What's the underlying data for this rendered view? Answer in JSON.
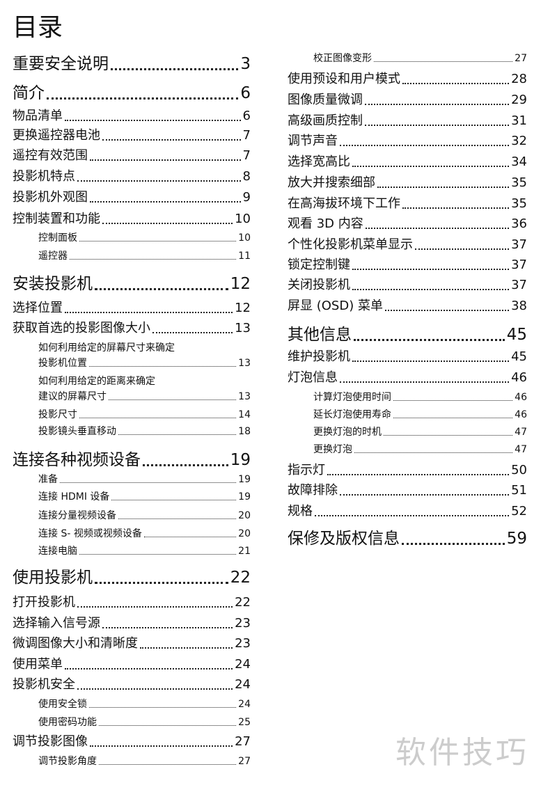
{
  "title": "目录",
  "columns": [
    [
      {
        "text": "重要安全说明",
        "page": "3"
      },
      {
        "text": "简介",
        "page": "6"
      },
      {
        "text": "物品清单",
        "page": "6"
      },
      {
        "text": "更换遥控器电池",
        "page": "7"
      },
      {
        "text": "遥控有效范围",
        "page": "7"
      },
      {
        "text": "投影机特点",
        "page": "8"
      },
      {
        "text": "投影机外观图",
        "page": "9"
      },
      {
        "text": "控制装置和功能",
        "page": "10"
      },
      {
        "text": "控制面板",
        "page": "10"
      },
      {
        "text": "遥控器",
        "page": "11"
      },
      {
        "text": "安装投影机",
        "page": "12"
      },
      {
        "text": "选择位置",
        "page": "12"
      },
      {
        "text": "获取首选的投影图像大小",
        "page": "13"
      },
      {
        "lines": [
          "如何利用给定的屏幕尺寸来确定",
          "投影机位置"
        ],
        "page": "13"
      },
      {
        "lines": [
          "如何利用给定的距离来确定",
          "建议的屏幕尺寸"
        ],
        "page": "13"
      },
      {
        "text": "投影尺寸",
        "page": "14"
      },
      {
        "text": "投影镜头垂直移动",
        "page": "18"
      },
      {
        "text": "连接各种视频设备",
        "page": "19"
      },
      {
        "text": "准备",
        "page": "19"
      },
      {
        "text": "连接 HDMI 设备",
        "page": "19"
      },
      {
        "text": "连接分量视频设备",
        "page": "20"
      },
      {
        "text": "连接 S- 视频或视频设备",
        "page": "20"
      },
      {
        "text": "连接电脑",
        "page": "21"
      },
      {
        "text": "使用投影机",
        "page": "22"
      },
      {
        "text": "打开投影机",
        "page": "22"
      },
      {
        "text": "选择输入信号源",
        "page": "23"
      },
      {
        "text": "微调图像大小和清晰度",
        "page": "23"
      },
      {
        "text": "使用菜单",
        "page": "24"
      },
      {
        "text": "投影机安全",
        "page": "24"
      },
      {
        "text": "使用安全锁",
        "page": "24"
      },
      {
        "text": "使用密码功能",
        "page": "25"
      },
      {
        "text": "调节投影图像",
        "page": "27"
      },
      {
        "text": "调节投影角度",
        "page": "27"
      }
    ],
    [
      {
        "text": "校正图像变形",
        "page": "27"
      },
      {
        "text": "使用预设和用户模式",
        "page": "28"
      },
      {
        "text": "图像质量微调",
        "page": "29"
      },
      {
        "text": "高级画质控制",
        "page": "31"
      },
      {
        "text": "调节声音",
        "page": "32"
      },
      {
        "text": "选择宽高比",
        "page": "34"
      },
      {
        "text": "放大并搜索细部",
        "page": "35"
      },
      {
        "text": "在高海拔环境下工作",
        "page": "35"
      },
      {
        "text": "观看 3D 内容",
        "page": "36"
      },
      {
        "text": "个性化投影机菜单显示",
        "page": "37"
      },
      {
        "text": "锁定控制键",
        "page": "37"
      },
      {
        "text": "关闭投影机",
        "page": "37"
      },
      {
        "text": "屏显 (OSD) 菜单",
        "page": "38"
      },
      {
        "text": "其他信息",
        "page": "45"
      },
      {
        "text": "维护投影机",
        "page": "45"
      },
      {
        "text": "灯泡信息",
        "page": "46"
      },
      {
        "text": "计算灯泡使用时间",
        "page": "46"
      },
      {
        "text": "延长灯泡使用寿命",
        "page": "46"
      },
      {
        "text": "更换灯泡的时机",
        "page": "47"
      },
      {
        "text": "更换灯泡",
        "page": "47"
      },
      {
        "text": "指示灯",
        "page": "50"
      },
      {
        "text": "故障排除",
        "page": "51"
      },
      {
        "text": "规格",
        "page": "52"
      },
      {
        "text": "保修及版权信息",
        "page": "59"
      }
    ]
  ],
  "watermark": "软件技巧"
}
